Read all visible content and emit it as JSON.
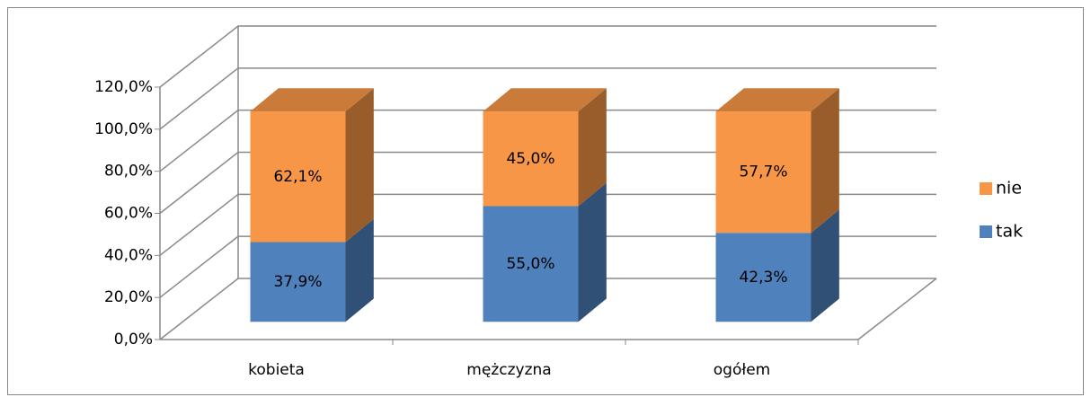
{
  "chart_data": {
    "type": "bar3d_stacked",
    "categories": [
      "kobieta",
      "mężczyzna",
      "ogółem"
    ],
    "series": [
      {
        "name": "tak",
        "color": "#4f81bd",
        "values": [
          37.9,
          55.0,
          42.3
        ],
        "value_labels": [
          "37,9%",
          "55,0%",
          "42,3%"
        ]
      },
      {
        "name": "nie",
        "color": "#f79646",
        "values": [
          62.1,
          45.0,
          57.7
        ],
        "value_labels": [
          "62,1%",
          "45,0%",
          "57,7%"
        ]
      }
    ],
    "ylim": [
      0,
      120
    ],
    "yticks": [
      {
        "value": 0,
        "label": "0,0%"
      },
      {
        "value": 20,
        "label": "20,0%"
      },
      {
        "value": 40,
        "label": "40,0%"
      },
      {
        "value": 60,
        "label": "60,0%"
      },
      {
        "value": 80,
        "label": "80,0%"
      },
      {
        "value": 100,
        "label": "100,0%"
      },
      {
        "value": 120,
        "label": "120,0%"
      }
    ],
    "grid": true,
    "legend": "right"
  }
}
